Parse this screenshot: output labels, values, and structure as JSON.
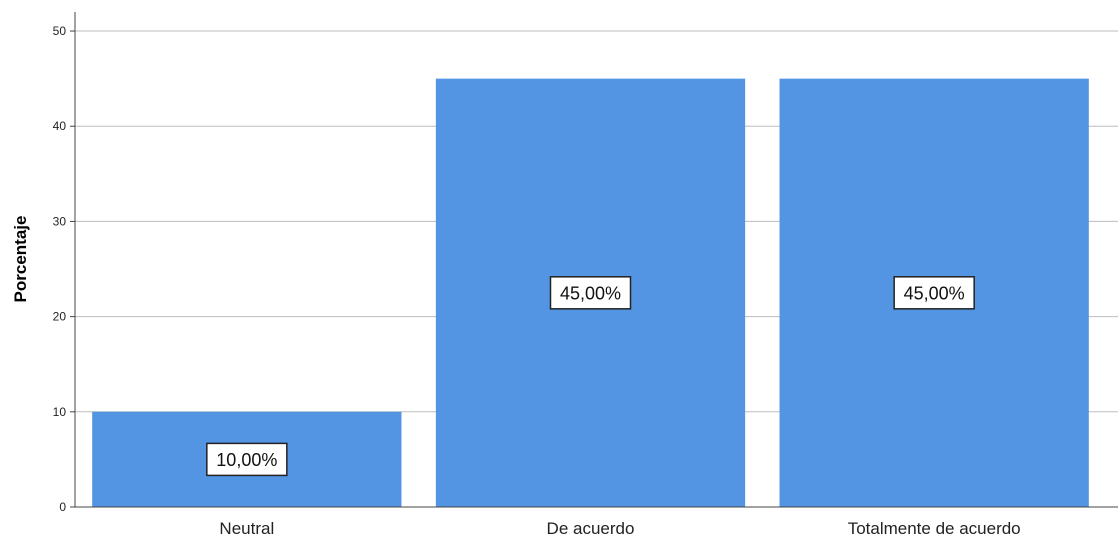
{
  "chart_data": {
    "type": "bar",
    "categories": [
      "Neutral",
      "De acuerdo",
      "Totalmente de acuerdo"
    ],
    "values": [
      10,
      45,
      45
    ],
    "data_labels": [
      "10,00%",
      "45,00%",
      "45,00%"
    ],
    "title": "",
    "xlabel": "",
    "ylabel": "Porcentaje",
    "ylim": [
      0,
      52
    ],
    "yticks": [
      0,
      10,
      20,
      30,
      40,
      50
    ],
    "ytick_labels": [
      "0",
      "10",
      "20",
      "30",
      "40",
      "50"
    ],
    "grid": true,
    "legend": "none",
    "colors": {
      "bar": "#5394e3",
      "grid": "#bdbdbd",
      "axis": "#444444",
      "label_box_border": "#222222",
      "label_box_fill": "#ffffff"
    }
  }
}
